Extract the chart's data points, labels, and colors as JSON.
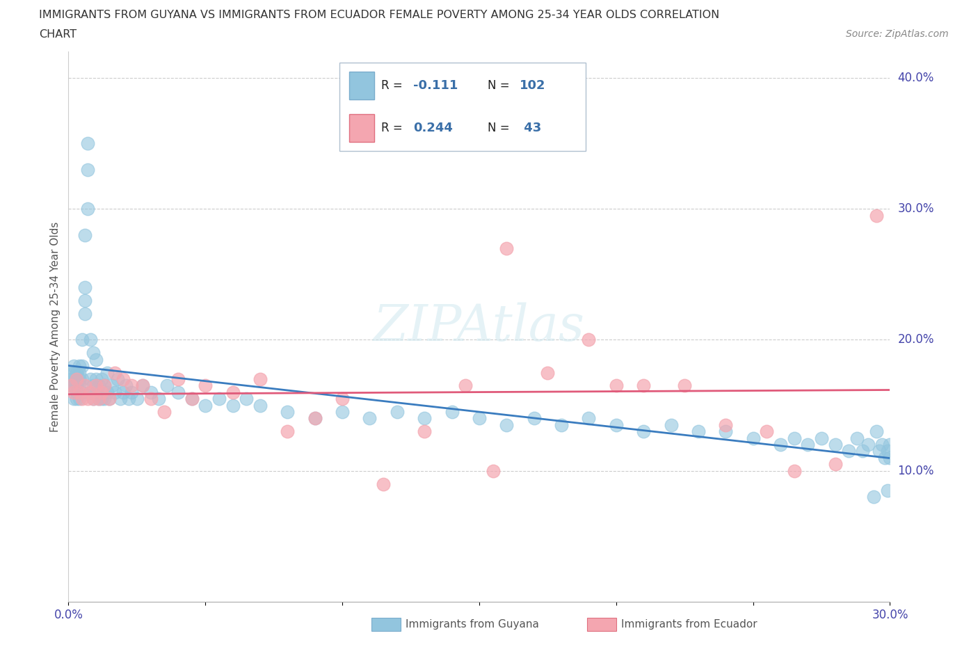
{
  "title_line1": "IMMIGRANTS FROM GUYANA VS IMMIGRANTS FROM ECUADOR FEMALE POVERTY AMONG 25-34 YEAR OLDS CORRELATION",
  "title_line2": "CHART",
  "source": "Source: ZipAtlas.com",
  "legend_label1": "Immigrants from Guyana",
  "legend_label2": "Immigrants from Ecuador",
  "R1": -0.111,
  "N1": 102,
  "R2": 0.244,
  "N2": 43,
  "color_guyana": "#92c5de",
  "color_ecuador": "#f4a6b0",
  "color_guyana_line": "#3a7cbf",
  "color_ecuador_line": "#e05a7a",
  "xlim": [
    0.0,
    0.3
  ],
  "ylim": [
    0.0,
    0.42
  ],
  "watermark_text": "ZIPAtlas",
  "guyana_x": [
    0.001,
    0.001,
    0.001,
    0.002,
    0.002,
    0.002,
    0.002,
    0.003,
    0.003,
    0.003,
    0.003,
    0.003,
    0.004,
    0.004,
    0.004,
    0.004,
    0.004,
    0.005,
    0.005,
    0.005,
    0.005,
    0.006,
    0.006,
    0.006,
    0.006,
    0.007,
    0.007,
    0.007,
    0.008,
    0.008,
    0.008,
    0.009,
    0.009,
    0.009,
    0.01,
    0.01,
    0.01,
    0.011,
    0.011,
    0.012,
    0.012,
    0.013,
    0.013,
    0.014,
    0.014,
    0.015,
    0.016,
    0.017,
    0.018,
    0.019,
    0.02,
    0.021,
    0.022,
    0.023,
    0.025,
    0.027,
    0.03,
    0.033,
    0.036,
    0.04,
    0.045,
    0.05,
    0.055,
    0.06,
    0.065,
    0.07,
    0.08,
    0.09,
    0.1,
    0.11,
    0.12,
    0.13,
    0.14,
    0.15,
    0.16,
    0.17,
    0.18,
    0.19,
    0.2,
    0.21,
    0.22,
    0.23,
    0.24,
    0.25,
    0.26,
    0.265,
    0.27,
    0.275,
    0.28,
    0.285,
    0.288,
    0.29,
    0.292,
    0.294,
    0.295,
    0.296,
    0.297,
    0.298,
    0.299,
    0.299,
    0.3,
    0.3
  ],
  "guyana_y": [
    0.17,
    0.165,
    0.175,
    0.155,
    0.165,
    0.175,
    0.18,
    0.16,
    0.17,
    0.155,
    0.165,
    0.175,
    0.155,
    0.165,
    0.17,
    0.175,
    0.18,
    0.16,
    0.17,
    0.18,
    0.2,
    0.22,
    0.23,
    0.24,
    0.28,
    0.3,
    0.33,
    0.35,
    0.16,
    0.17,
    0.2,
    0.155,
    0.165,
    0.19,
    0.16,
    0.17,
    0.185,
    0.155,
    0.165,
    0.155,
    0.17,
    0.155,
    0.165,
    0.16,
    0.175,
    0.155,
    0.165,
    0.16,
    0.17,
    0.155,
    0.16,
    0.165,
    0.155,
    0.16,
    0.155,
    0.165,
    0.16,
    0.155,
    0.165,
    0.16,
    0.155,
    0.15,
    0.155,
    0.15,
    0.155,
    0.15,
    0.145,
    0.14,
    0.145,
    0.14,
    0.145,
    0.14,
    0.145,
    0.14,
    0.135,
    0.14,
    0.135,
    0.14,
    0.135,
    0.13,
    0.135,
    0.13,
    0.13,
    0.125,
    0.12,
    0.125,
    0.12,
    0.125,
    0.12,
    0.115,
    0.125,
    0.115,
    0.12,
    0.08,
    0.13,
    0.115,
    0.12,
    0.11,
    0.115,
    0.085,
    0.12,
    0.11
  ],
  "ecuador_x": [
    0.001,
    0.002,
    0.003,
    0.004,
    0.005,
    0.006,
    0.007,
    0.008,
    0.009,
    0.01,
    0.011,
    0.012,
    0.013,
    0.015,
    0.017,
    0.02,
    0.023,
    0.027,
    0.03,
    0.035,
    0.04,
    0.045,
    0.05,
    0.06,
    0.07,
    0.08,
    0.09,
    0.1,
    0.115,
    0.13,
    0.145,
    0.155,
    0.16,
    0.175,
    0.19,
    0.2,
    0.21,
    0.225,
    0.24,
    0.255,
    0.265,
    0.28,
    0.295
  ],
  "ecuador_y": [
    0.165,
    0.16,
    0.17,
    0.16,
    0.155,
    0.165,
    0.155,
    0.16,
    0.155,
    0.165,
    0.155,
    0.16,
    0.165,
    0.155,
    0.175,
    0.17,
    0.165,
    0.165,
    0.155,
    0.145,
    0.17,
    0.155,
    0.165,
    0.16,
    0.17,
    0.13,
    0.14,
    0.155,
    0.09,
    0.13,
    0.165,
    0.1,
    0.27,
    0.175,
    0.2,
    0.165,
    0.165,
    0.165,
    0.135,
    0.13,
    0.1,
    0.105,
    0.295
  ]
}
